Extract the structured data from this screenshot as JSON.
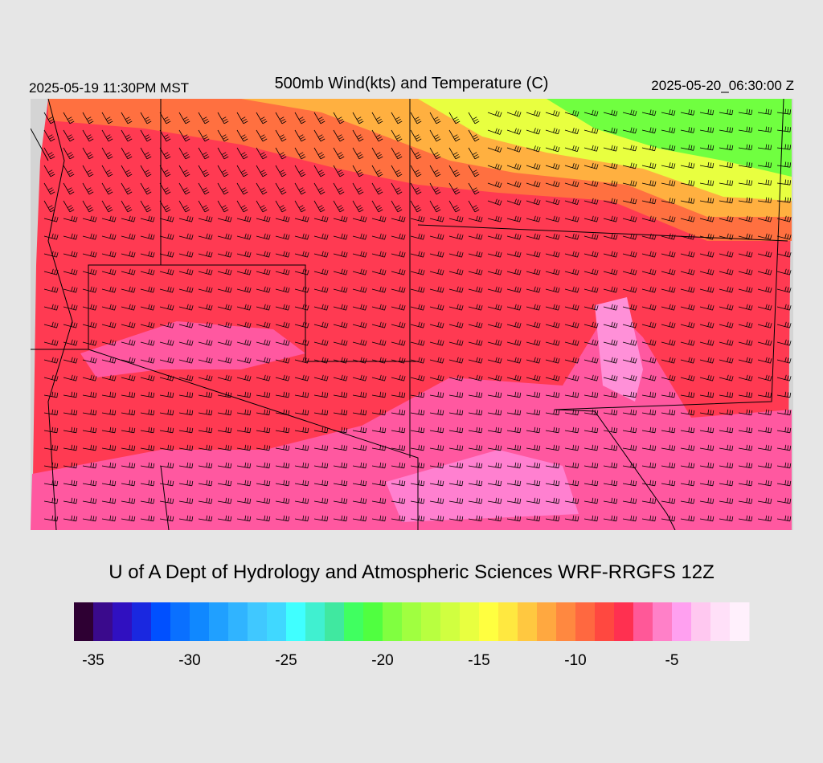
{
  "header": {
    "left": "2025-05-19 11:30PM MST",
    "title": "500mb Wind(kts) and Temperature (C)",
    "right": "2025-05-20_06:30:00 Z"
  },
  "footer": {
    "credit": "U of A Dept of Hydrology and Atmospheric Sciences WRF-RRGFS 12Z"
  },
  "colorbar": {
    "lim": [
      -36,
      -1
    ],
    "ticks": [
      -35,
      -30,
      -25,
      -20,
      -15,
      -10,
      -5
    ],
    "colors": [
      "#2e0033",
      "#3a0a8c",
      "#3010c0",
      "#1a28e0",
      "#0050ff",
      "#0a70ff",
      "#1088ff",
      "#20a0ff",
      "#30b4ff",
      "#40c8ff",
      "#40d8ff",
      "#40ffff",
      "#40f0d0",
      "#40e8a0",
      "#40ff60",
      "#50ff40",
      "#80ff40",
      "#a0ff40",
      "#b8ff40",
      "#d0ff40",
      "#e8ff40",
      "#ffff40",
      "#ffe840",
      "#ffc840",
      "#ffa840",
      "#ff8840",
      "#ff6840",
      "#ff4840",
      "#ff3050",
      "#ff5898",
      "#ff80c8",
      "#ffa0f0",
      "#ffc8f0",
      "#ffe0f8",
      "#fff0fc"
    ]
  }
}
